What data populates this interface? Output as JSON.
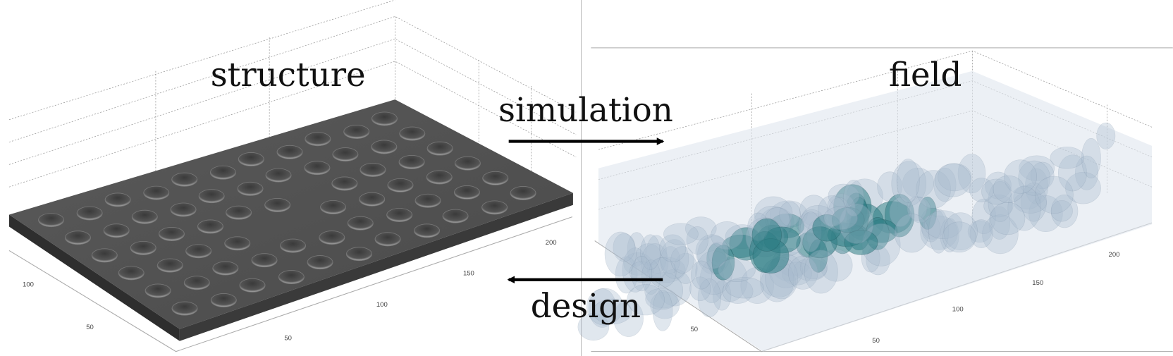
{
  "labels": {
    "structure": "structure",
    "field": "field",
    "simulation": "simulation",
    "design": "design"
  },
  "structure_axes": {
    "left_ticks": [
      "100",
      "50"
    ],
    "front_ticks": [
      "50",
      "100",
      "150",
      "200"
    ]
  },
  "field_axes": {
    "left_ticks": [
      "50"
    ],
    "front_ticks": [
      "50",
      "100",
      "150",
      "200"
    ]
  }
}
